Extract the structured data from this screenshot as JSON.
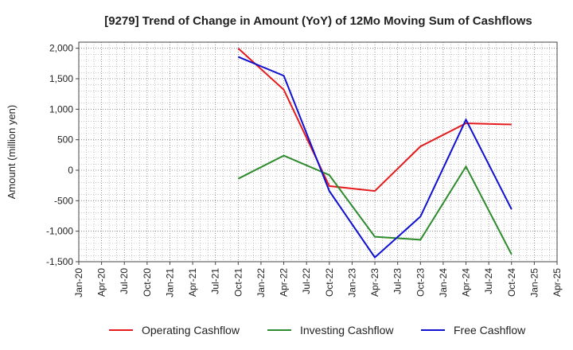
{
  "chart_data": {
    "type": "line",
    "title": "[9279]  Trend of Change in Amount (YoY) of 12Mo Moving Sum of Cashflows",
    "xlabel": "",
    "ylabel": "Amount (million yen)",
    "ylim": [
      -1500,
      2100
    ],
    "yticks": [
      -1500,
      -1000,
      -500,
      0,
      500,
      1000,
      1500,
      2000
    ],
    "ytick_labels": [
      "-1,500",
      "-1,000",
      "-500",
      "0",
      "500",
      "1,000",
      "1,500",
      "2,000"
    ],
    "xtick_labels": [
      "Jan-20",
      "Apr-20",
      "Jul-20",
      "Oct-20",
      "Jan-21",
      "Apr-21",
      "Jul-21",
      "Oct-21",
      "Jan-22",
      "Apr-22",
      "Jul-22",
      "Oct-22",
      "Jan-23",
      "Apr-23",
      "Jul-23",
      "Oct-23",
      "Jan-24",
      "Apr-24",
      "Jul-24",
      "Oct-24",
      "Jan-25",
      "Apr-25"
    ],
    "x_points": [
      "Oct-21",
      "Apr-22",
      "Oct-22",
      "Apr-23",
      "Oct-23",
      "Apr-24",
      "Oct-24"
    ],
    "grid": true,
    "legend_position": "bottom",
    "series": [
      {
        "name": "Operating Cashflow",
        "color": "#e41a1c",
        "values": [
          2000,
          1320,
          -260,
          -340,
          390,
          770,
          750
        ]
      },
      {
        "name": "Investing Cashflow",
        "color": "#2e8b2e",
        "values": [
          -140,
          240,
          -80,
          -1090,
          -1140,
          60,
          -1380
        ]
      },
      {
        "name": "Free Cashflow",
        "color": "#1010d0",
        "values": [
          1860,
          1550,
          -340,
          -1430,
          -760,
          830,
          -640
        ]
      }
    ]
  }
}
